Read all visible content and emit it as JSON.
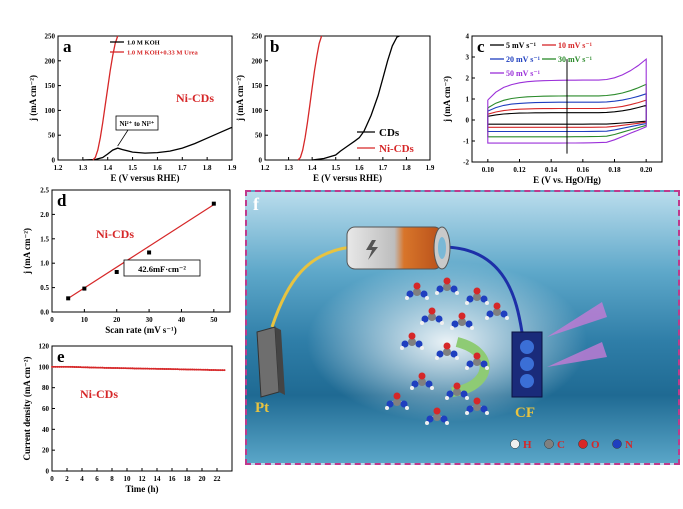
{
  "chart_data": [
    {
      "id": "a",
      "type": "line",
      "panel_label": "a",
      "xlabel": "E (V versus RHE)",
      "ylabel": "j (mA cm⁻²)",
      "xlim": [
        1.2,
        1.9
      ],
      "ylim": [
        0,
        250
      ],
      "xticks": [
        "1.2",
        "1.3",
        "1.4",
        "1.5",
        "1.6",
        "1.7",
        "1.8",
        "1.9"
      ],
      "yticks": [
        "0",
        "50",
        "100",
        "150",
        "200",
        "250"
      ],
      "legend_placement": "top",
      "series": [
        {
          "name": "1.0 M KOH",
          "color": "#000000",
          "x": [
            1.3,
            1.35,
            1.38,
            1.4,
            1.42,
            1.44,
            1.46,
            1.5,
            1.55,
            1.6,
            1.65,
            1.7,
            1.75,
            1.8,
            1.85,
            1.9
          ],
          "y": [
            0,
            1,
            5,
            12,
            20,
            24,
            21,
            16,
            14,
            15,
            18,
            24,
            33,
            44,
            55,
            66
          ]
        },
        {
          "name": "1.0 M KOH+0.33 M Urea",
          "color": "#d62728",
          "x": [
            1.34,
            1.35,
            1.36,
            1.37,
            1.38,
            1.39,
            1.4,
            1.41,
            1.42,
            1.43,
            1.44
          ],
          "y": [
            0,
            5,
            20,
            45,
            75,
            110,
            145,
            180,
            210,
            235,
            250
          ]
        }
      ],
      "annotations": [
        "Ni²⁺ to Ni³⁺",
        "Ni-CDs"
      ]
    },
    {
      "id": "b",
      "type": "line",
      "panel_label": "b",
      "xlabel": "E (V versus RHE)",
      "ylabel": "j (mA cm⁻²)",
      "xlim": [
        1.2,
        1.9
      ],
      "ylim": [
        0,
        250
      ],
      "xticks": [
        "1.2",
        "1.3",
        "1.4",
        "1.5",
        "1.6",
        "1.7",
        "1.8",
        "1.9"
      ],
      "yticks": [
        "0",
        "50",
        "100",
        "150",
        "200",
        "250"
      ],
      "legend_placement": "bottom-right",
      "series": [
        {
          "name": "CDs",
          "color": "#000000",
          "x": [
            1.4,
            1.45,
            1.5,
            1.52,
            1.55,
            1.58,
            1.6,
            1.62,
            1.65,
            1.68,
            1.7,
            1.72,
            1.74,
            1.76,
            1.77
          ],
          "y": [
            0,
            3,
            10,
            18,
            28,
            38,
            45,
            58,
            90,
            130,
            165,
            200,
            230,
            248,
            250
          ]
        },
        {
          "name": "Ni-CDs",
          "color": "#d62728",
          "x": [
            1.34,
            1.35,
            1.36,
            1.37,
            1.38,
            1.39,
            1.4,
            1.41,
            1.42,
            1.43,
            1.44
          ],
          "y": [
            0,
            5,
            20,
            45,
            75,
            110,
            145,
            180,
            210,
            235,
            250
          ]
        }
      ]
    },
    {
      "id": "c",
      "type": "line",
      "panel_label": "c",
      "xlabel": "E (V vs. HgO/Hg)",
      "ylabel": "j (mA cm⁻²)",
      "xlim": [
        0.09,
        0.21
      ],
      "ylim": [
        -2,
        4
      ],
      "xticks": [
        "0.10",
        "0.12",
        "0.14",
        "0.16",
        "0.18",
        "0.20"
      ],
      "yticks": [
        "-2",
        "-1",
        "0",
        "1",
        "2",
        "3",
        "4"
      ],
      "legend_placement": "top",
      "vertical_marker_x": 0.15,
      "series": [
        {
          "name": "5 mV s⁻¹",
          "color": "#000000",
          "scan_rate": 5,
          "upper": 0.35,
          "lower": -0.2,
          "peak": 0.7
        },
        {
          "name": "10 mV s⁻¹",
          "color": "#d62728",
          "scan_rate": 10,
          "upper": 0.55,
          "lower": -0.35,
          "peak": 0.95
        },
        {
          "name": "20 mV s⁻¹",
          "color": "#1f3fbf",
          "scan_rate": 20,
          "upper": 0.85,
          "lower": -0.55,
          "peak": 1.25
        },
        {
          "name": "30 mV s⁻¹",
          "color": "#2a8a2a",
          "scan_rate": 30,
          "upper": 1.15,
          "lower": -0.8,
          "peak": 1.7
        },
        {
          "name": "50 mV s⁻¹",
          "color": "#9b30d9",
          "scan_rate": 50,
          "upper": 1.9,
          "lower": -1.1,
          "peak": 2.9
        }
      ]
    },
    {
      "id": "d",
      "type": "scatter",
      "panel_label": "d",
      "xlabel": "Scan rate (mV s⁻¹)",
      "ylabel": "j (mA cm⁻²)",
      "xlim": [
        0,
        55
      ],
      "ylim": [
        0.0,
        2.5
      ],
      "xticks": [
        "0",
        "10",
        "20",
        "30",
        "40",
        "50"
      ],
      "yticks": [
        "0.0",
        "0.5",
        "1.0",
        "1.5",
        "2.0",
        "2.5"
      ],
      "points": [
        {
          "x": 5,
          "y": 0.28
        },
        {
          "x": 10,
          "y": 0.48
        },
        {
          "x": 20,
          "y": 0.82
        },
        {
          "x": 30,
          "y": 1.22
        },
        {
          "x": 50,
          "y": 2.22
        }
      ],
      "fit": {
        "x": [
          5,
          50
        ],
        "y": [
          0.28,
          2.2
        ],
        "color": "#d62728"
      },
      "annotations": [
        "Ni-CDs",
        "42.6mF·cm⁻²"
      ]
    },
    {
      "id": "e",
      "type": "line",
      "panel_label": "e",
      "xlabel": "Time (h)",
      "ylabel": "Current density (mA cm⁻²)",
      "xlim": [
        0,
        24
      ],
      "ylim": [
        0,
        120
      ],
      "xticks": [
        "0",
        "2",
        "4",
        "6",
        "8",
        "10",
        "12",
        "14",
        "16",
        "18",
        "20",
        "22"
      ],
      "yticks": [
        "0",
        "20",
        "40",
        "60",
        "80",
        "100",
        "120"
      ],
      "series": [
        {
          "name": "",
          "color": "#d62728",
          "x": [
            0,
            1,
            2,
            3,
            4,
            5,
            6,
            7,
            8,
            9,
            10,
            11,
            12,
            13,
            14,
            15,
            16,
            17,
            18,
            19,
            20,
            21,
            22,
            23
          ],
          "y": [
            100,
            100,
            100,
            99.8,
            99.6,
            99.4,
            99.2,
            99,
            98.9,
            98.8,
            98.6,
            98.4,
            98.3,
            98.2,
            98,
            97.9,
            97.8,
            97.6,
            97.4,
            97.3,
            97.2,
            97,
            96.9,
            96.8
          ]
        }
      ],
      "annotations": [
        "Ni-CDs"
      ]
    }
  ],
  "panel_f": {
    "label": "f",
    "pt_label": "Pt",
    "cf_label": "CF",
    "legend": [
      {
        "symbol": "H",
        "color": "#f0f0f0"
      },
      {
        "symbol": "C",
        "color": "#808080"
      },
      {
        "symbol": "O",
        "color": "#d62728"
      },
      {
        "symbol": "N",
        "color": "#1f3fbf"
      }
    ],
    "legend_text_color": "#d62728"
  }
}
